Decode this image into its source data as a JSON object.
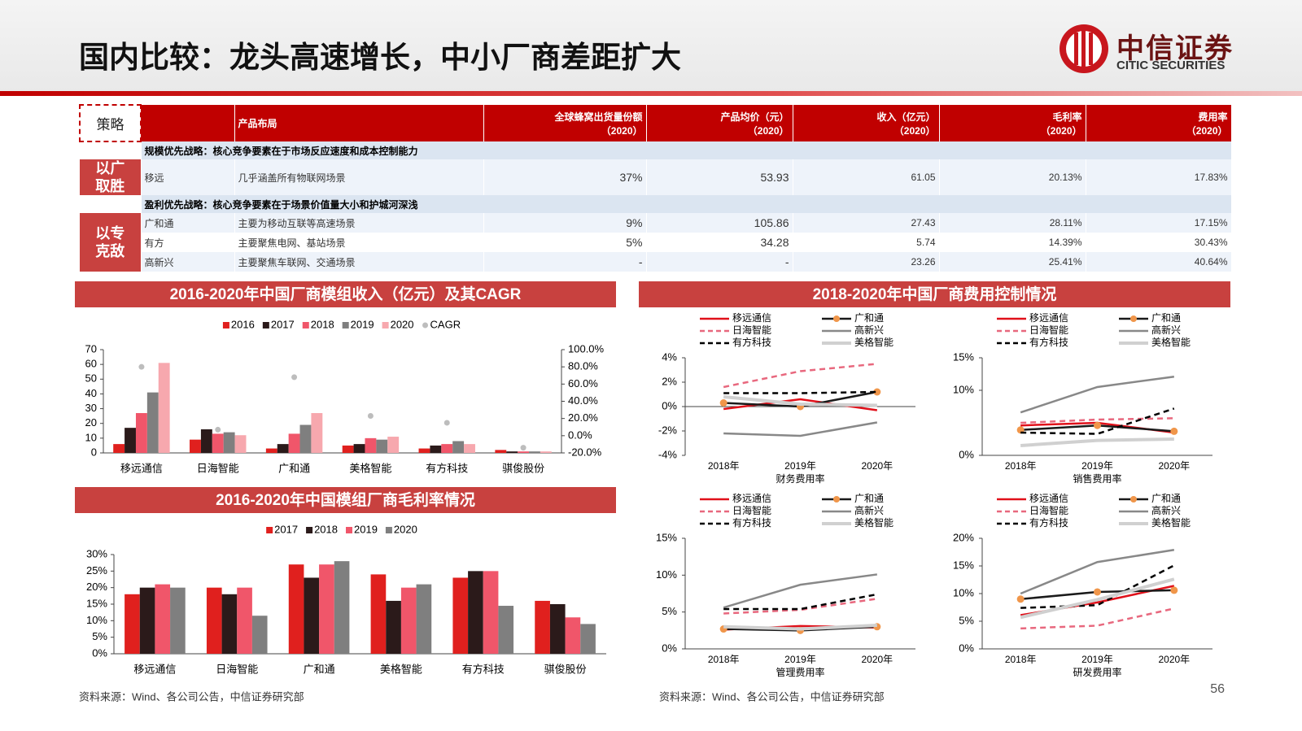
{
  "header": {
    "title": "国内比较：龙头高速增长，中小厂商差距扩大",
    "logo_cn": "中信证券",
    "logo_en": "CITIC SECURITIES"
  },
  "table": {
    "corner": "策略",
    "columns": [
      {
        "label": "产品布局"
      },
      {
        "label": "全球蜂窝出货量份额",
        "sub": "（2020）"
      },
      {
        "label": "产品均价（元）",
        "sub": "（2020）"
      },
      {
        "label": "收入（亿元）",
        "sub": "（2020）"
      },
      {
        "label": "毛利率",
        "sub": "（2020）"
      },
      {
        "label": "费用率",
        "sub": "（2020）"
      }
    ],
    "groups": [
      {
        "strategy": "以广取胜",
        "note": "规模优先战略：核心竞争要素在于市场反应速度和成本控制能力",
        "rows": [
          [
            "移远",
            "几乎涵盖所有物联网场景",
            "37%",
            "53.93",
            "61.05",
            "20.13%",
            "17.83%"
          ]
        ]
      },
      {
        "strategy": "以专克敌",
        "note": "盈利优先战略：核心竞争要素在于场景价值量大小和护城河深浅",
        "rows": [
          [
            "广和通",
            "主要为移动互联等高速场景",
            "9%",
            "105.86",
            "27.43",
            "28.11%",
            "17.15%"
          ],
          [
            "有方",
            "主要聚焦电网、基站场景",
            "5%",
            "34.28",
            "5.74",
            "14.39%",
            "30.43%"
          ],
          [
            "高新兴",
            "主要聚焦车联网、交通场景",
            "-",
            "-",
            "23.26",
            "25.41%",
            "40.64%"
          ]
        ]
      }
    ]
  },
  "chart_data": [
    {
      "type": "bar",
      "title": "2016-2020年中国厂商模组收入（亿元）及其CAGR",
      "categories": [
        "移远通信",
        "日海智能",
        "广和通",
        "美格智能",
        "有方科技",
        "骐俊股份"
      ],
      "series": [
        {
          "name": "2016",
          "color": "#e0201e",
          "values": [
            6,
            9,
            3,
            5,
            3,
            2
          ]
        },
        {
          "name": "2017",
          "color": "#2b1a1a",
          "values": [
            17,
            16,
            6,
            6,
            5,
            1
          ]
        },
        {
          "name": "2018",
          "color": "#f0566a",
          "values": [
            27,
            13,
            13,
            10,
            6,
            1
          ]
        },
        {
          "name": "2019",
          "color": "#7f7f7f",
          "values": [
            41,
            14,
            19,
            9,
            8,
            1
          ]
        },
        {
          "name": "2020",
          "color": "#f7a8ae",
          "values": [
            61,
            12,
            27,
            11,
            6,
            1
          ]
        },
        {
          "name": "CAGR",
          "color": "#bdbdbd",
          "type": "scatter",
          "axis": "y2",
          "values": [
            80,
            7,
            68,
            23,
            15,
            -14
          ]
        }
      ],
      "ylim": [
        0,
        70
      ],
      "yticks": [
        0,
        10,
        20,
        30,
        40,
        50,
        60,
        70
      ],
      "y2lim": [
        -20,
        100
      ],
      "y2ticks": [
        {
          "value": -20,
          "label": "-20.0%"
        },
        {
          "value": 0,
          "label": "0.0%"
        },
        {
          "value": 20,
          "label": "20.0%"
        },
        {
          "value": 40,
          "label": "40.0%"
        },
        {
          "value": 60,
          "label": "60.0%"
        },
        {
          "value": 80,
          "label": "80.0%"
        },
        {
          "value": 100,
          "label": "100.0%"
        }
      ]
    },
    {
      "type": "bar",
      "title": "2016-2020年中国模组厂商毛利率情况",
      "categories": [
        "移远通信",
        "日海智能",
        "广和通",
        "美格智能",
        "有方科技",
        "骐俊股份"
      ],
      "series": [
        {
          "name": "2017",
          "color": "#e0201e",
          "values": [
            18,
            20,
            27,
            24,
            23,
            16
          ]
        },
        {
          "name": "2018",
          "color": "#2b1a1a",
          "values": [
            20,
            18,
            23,
            16,
            25,
            15
          ]
        },
        {
          "name": "2019",
          "color": "#f0566a",
          "values": [
            21,
            20,
            27,
            20,
            25,
            11
          ]
        },
        {
          "name": "2020",
          "color": "#7f7f7f",
          "values": [
            20,
            11.5,
            28,
            21,
            14.5,
            9
          ]
        }
      ],
      "ylim": [
        0,
        30
      ],
      "yticks": [
        {
          "value": 0,
          "label": "0%"
        },
        {
          "value": 5,
          "label": "5%"
        },
        {
          "value": 10,
          "label": "10%"
        },
        {
          "value": 15,
          "label": "15%"
        },
        {
          "value": 20,
          "label": "20%"
        },
        {
          "value": 25,
          "label": "25%"
        },
        {
          "value": 30,
          "label": "30%"
        }
      ]
    },
    {
      "type": "line",
      "xlabel": "财务费用率",
      "categories": [
        "2018年",
        "2019年",
        "2020年"
      ],
      "series": [
        {
          "name": "移远通信",
          "color": "#e0101a",
          "values": [
            -0.2,
            0.6,
            -0.3
          ]
        },
        {
          "name": "广和通",
          "color": "#1a1a1a",
          "marker_color": "#f0964a",
          "values": [
            0.3,
            0,
            1.2
          ]
        },
        {
          "name": "日海智能",
          "color": "#e8687e",
          "dash": true,
          "values": [
            1.6,
            2.9,
            3.5
          ]
        },
        {
          "name": "高新兴",
          "color": "#888888",
          "values": [
            -2.2,
            -2.4,
            -1.3
          ]
        },
        {
          "name": "有方科技",
          "color": "#000000",
          "dash": true,
          "values": [
            1.1,
            1.1,
            1.2
          ]
        },
        {
          "name": "美格智能",
          "color": "#d0d0d0",
          "width": 4,
          "values": [
            0.8,
            0.2,
            0.1
          ]
        }
      ],
      "ylim": [
        -4,
        4
      ],
      "yticks": [
        {
          "value": -4,
          "label": "-4%"
        },
        {
          "value": -2,
          "label": "-2%"
        },
        {
          "value": 0,
          "label": "0%"
        },
        {
          "value": 2,
          "label": "2%"
        },
        {
          "value": 4,
          "label": "4%"
        }
      ]
    },
    {
      "type": "line",
      "xlabel": "销售费用率",
      "categories": [
        "2018年",
        "2019年",
        "2020年"
      ],
      "series": [
        {
          "name": "移远通信",
          "color": "#e0101a",
          "values": [
            4.6,
            5.0,
            3.5
          ]
        },
        {
          "name": "广和通",
          "color": "#1a1a1a",
          "marker_color": "#f0964a",
          "values": [
            3.9,
            4.6,
            3.7
          ]
        },
        {
          "name": "日海智能",
          "color": "#e8687e",
          "dash": true,
          "values": [
            5.0,
            5.5,
            5.7
          ]
        },
        {
          "name": "高新兴",
          "color": "#888888",
          "values": [
            6.6,
            10.5,
            12.1
          ]
        },
        {
          "name": "有方科技",
          "color": "#000000",
          "dash": true,
          "values": [
            3.5,
            3.3,
            7.2
          ]
        },
        {
          "name": "美格智能",
          "color": "#d0d0d0",
          "width": 4,
          "values": [
            1.5,
            2.3,
            2.5
          ]
        }
      ],
      "ylim": [
        0,
        15
      ],
      "yticks": [
        {
          "value": 0,
          "label": "0%"
        },
        {
          "value": 10,
          "label": "10%"
        },
        {
          "value": 15,
          "label": "15%"
        }
      ]
    },
    {
      "type": "line",
      "xlabel": "管理费用率",
      "categories": [
        "2018年",
        "2019年",
        "2020年"
      ],
      "series": [
        {
          "name": "移远通信",
          "color": "#e0101a",
          "values": [
            2.6,
            3.1,
            2.9
          ]
        },
        {
          "name": "广和通",
          "color": "#1a1a1a",
          "marker_color": "#f0964a",
          "values": [
            2.7,
            2.5,
            3.0
          ]
        },
        {
          "name": "日海智能",
          "color": "#e8687e",
          "dash": true,
          "values": [
            4.8,
            5.3,
            6.8
          ]
        },
        {
          "name": "高新兴",
          "color": "#888888",
          "values": [
            5.6,
            8.7,
            10.1
          ]
        },
        {
          "name": "有方科技",
          "color": "#000000",
          "dash": true,
          "values": [
            5.4,
            5.4,
            7.4
          ]
        },
        {
          "name": "美格智能",
          "color": "#d0d0d0",
          "width": 4,
          "values": [
            3.0,
            2.7,
            3.2
          ]
        }
      ],
      "ylim": [
        0,
        15
      ],
      "yticks": [
        {
          "value": 0,
          "label": "0%"
        },
        {
          "value": 5,
          "label": "5%"
        },
        {
          "value": 10,
          "label": "10%"
        },
        {
          "value": 15,
          "label": "15%"
        }
      ]
    },
    {
      "type": "line",
      "xlabel": "研发费用率",
      "categories": [
        "2018年",
        "2019年",
        "2020年"
      ],
      "series": [
        {
          "name": "移远通信",
          "color": "#e0101a",
          "values": [
            6.1,
            8.4,
            11.4
          ]
        },
        {
          "name": "广和通",
          "color": "#1a1a1a",
          "marker_color": "#f0964a",
          "values": [
            9.0,
            10.3,
            10.6
          ]
        },
        {
          "name": "日海智能",
          "color": "#e8687e",
          "dash": true,
          "values": [
            3.7,
            4.2,
            7.3
          ]
        },
        {
          "name": "高新兴",
          "color": "#888888",
          "values": [
            10,
            15.7,
            17.9
          ]
        },
        {
          "name": "有方科技",
          "color": "#000000",
          "dash": true,
          "values": [
            7.4,
            7.9,
            15.1
          ]
        },
        {
          "name": "美格智能",
          "color": "#d0d0d0",
          "width": 4,
          "values": [
            5.7,
            8.9,
            12.6
          ]
        }
      ],
      "ylim": [
        0,
        20
      ],
      "yticks": [
        {
          "value": 0,
          "label": "0%"
        },
        {
          "value": 5,
          "label": "5%"
        },
        {
          "value": 10,
          "label": "10%"
        },
        {
          "value": 15,
          "label": "15%"
        },
        {
          "value": 20,
          "label": "20%"
        }
      ]
    }
  ],
  "expense_panel": {
    "title": "2018-2020年中国厂商费用控制情况"
  },
  "sources": [
    "资料来源：Wind、各公司公告，中信证券研究部",
    "资料来源：Wind、各公司公告，中信证券研究部"
  ],
  "page_number": "56"
}
